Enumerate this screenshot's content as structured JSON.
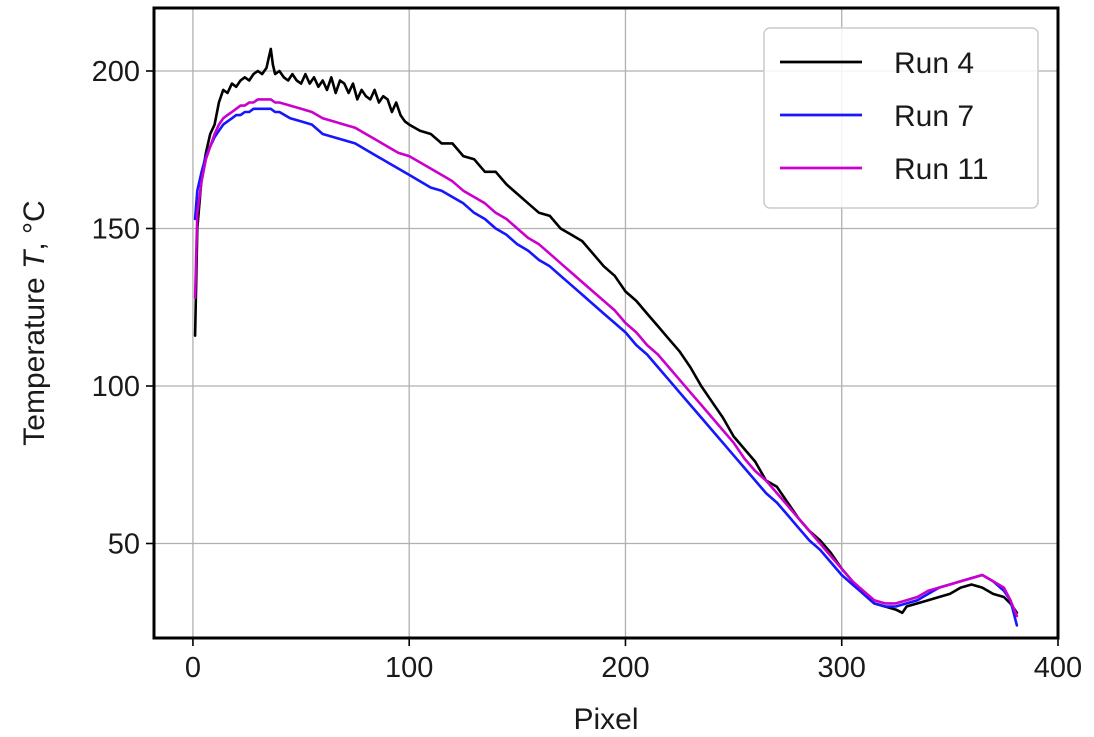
{
  "chart_data": {
    "type": "line",
    "xlabel": "Pixel",
    "ylabel_main": "Temperature ",
    "ylabel_var": "T",
    "ylabel_unit": ", °C",
    "xlim": [
      -18,
      400
    ],
    "ylim": [
      20,
      220
    ],
    "x_ticks": [
      0,
      100,
      200,
      300,
      400
    ],
    "y_ticks": [
      50,
      100,
      150,
      200
    ],
    "grid": true,
    "legend_position": "top-right",
    "series": [
      {
        "name": "Run 4",
        "color": "#000000",
        "x": [
          1,
          2,
          4,
          6,
          8,
          10,
          12,
          14,
          16,
          18,
          20,
          22,
          24,
          26,
          28,
          30,
          32,
          34,
          35,
          36,
          37,
          38,
          40,
          42,
          44,
          46,
          48,
          50,
          52,
          54,
          56,
          58,
          60,
          62,
          64,
          66,
          68,
          70,
          72,
          74,
          76,
          78,
          80,
          82,
          84,
          86,
          88,
          90,
          92,
          94,
          96,
          98,
          100,
          105,
          110,
          115,
          120,
          125,
          130,
          135,
          140,
          145,
          150,
          155,
          160,
          165,
          170,
          175,
          180,
          185,
          190,
          195,
          200,
          205,
          210,
          215,
          220,
          225,
          230,
          235,
          240,
          245,
          250,
          255,
          260,
          265,
          270,
          275,
          280,
          285,
          290,
          295,
          300,
          305,
          310,
          315,
          320,
          325,
          328,
          330,
          335,
          340,
          345,
          350,
          355,
          360,
          365,
          370,
          375,
          378,
          381
        ],
        "y": [
          116,
          150,
          166,
          174,
          180,
          183,
          190,
          194,
          193,
          196,
          195,
          197,
          198,
          197,
          199,
          200,
          199,
          201,
          204,
          207,
          202,
          199,
          200,
          198,
          197,
          199,
          197,
          196,
          199,
          196,
          198,
          195,
          197,
          194,
          198,
          193,
          197,
          196,
          193,
          196,
          191,
          194,
          192,
          191,
          194,
          190,
          192,
          191,
          187,
          190,
          186,
          184,
          183,
          181,
          180,
          177,
          177,
          173,
          172,
          168,
          168,
          164,
          161,
          158,
          155,
          154,
          150,
          148,
          146,
          142,
          138,
          135,
          130,
          127,
          123,
          119,
          115,
          111,
          106,
          100,
          95,
          90,
          84,
          80,
          76,
          70,
          68,
          63,
          58,
          54,
          51,
          47,
          42,
          38,
          34,
          31,
          30,
          29,
          28,
          30,
          31,
          32,
          33,
          34,
          36,
          37,
          36,
          34,
          33,
          31,
          28
        ]
      },
      {
        "name": "Run 7",
        "color": "#1616ff",
        "x": [
          1,
          2,
          4,
          6,
          8,
          10,
          12,
          14,
          16,
          18,
          20,
          22,
          24,
          26,
          28,
          30,
          32,
          34,
          36,
          38,
          40,
          45,
          50,
          55,
          60,
          65,
          70,
          75,
          80,
          85,
          90,
          95,
          100,
          105,
          110,
          115,
          120,
          125,
          130,
          135,
          140,
          145,
          150,
          155,
          160,
          165,
          170,
          175,
          180,
          185,
          190,
          195,
          200,
          205,
          210,
          215,
          220,
          225,
          230,
          235,
          240,
          245,
          250,
          255,
          260,
          265,
          270,
          275,
          280,
          285,
          290,
          295,
          300,
          305,
          310,
          315,
          320,
          325,
          330,
          335,
          340,
          345,
          350,
          355,
          360,
          365,
          370,
          375,
          378,
          381
        ],
        "y": [
          153,
          162,
          168,
          173,
          176,
          179,
          181,
          183,
          184,
          185,
          186,
          186,
          187,
          187,
          188,
          188,
          188,
          188,
          188,
          187,
          187,
          185,
          184,
          183,
          180,
          179,
          178,
          177,
          175,
          173,
          171,
          169,
          167,
          165,
          163,
          162,
          160,
          158,
          155,
          153,
          150,
          148,
          145,
          143,
          140,
          138,
          135,
          132,
          129,
          126,
          123,
          120,
          117,
          113,
          110,
          106,
          102,
          98,
          94,
          90,
          86,
          82,
          78,
          74,
          70,
          66,
          63,
          59,
          55,
          51,
          48,
          44,
          40,
          37,
          34,
          31,
          30,
          30,
          31,
          32,
          34,
          36,
          37,
          38,
          39,
          40,
          38,
          35,
          32,
          24
        ]
      },
      {
        "name": "Run 11",
        "color": "#cc00cc",
        "x": [
          1,
          2,
          4,
          6,
          8,
          10,
          12,
          14,
          16,
          18,
          20,
          22,
          24,
          26,
          28,
          30,
          32,
          34,
          36,
          38,
          40,
          45,
          50,
          55,
          60,
          65,
          70,
          75,
          80,
          85,
          90,
          95,
          100,
          105,
          110,
          115,
          120,
          125,
          130,
          135,
          140,
          145,
          150,
          155,
          160,
          165,
          170,
          175,
          180,
          185,
          190,
          195,
          200,
          205,
          210,
          215,
          220,
          225,
          230,
          235,
          240,
          245,
          250,
          255,
          260,
          265,
          270,
          275,
          280,
          285,
          290,
          295,
          300,
          305,
          310,
          315,
          320,
          325,
          330,
          335,
          340,
          345,
          350,
          355,
          360,
          365,
          370,
          375,
          378,
          381
        ],
        "y": [
          128,
          155,
          165,
          172,
          176,
          180,
          183,
          185,
          186,
          187,
          188,
          189,
          189,
          190,
          190,
          191,
          191,
          191,
          191,
          190,
          190,
          189,
          188,
          187,
          185,
          184,
          183,
          182,
          180,
          178,
          176,
          174,
          173,
          171,
          169,
          167,
          165,
          162,
          160,
          158,
          155,
          153,
          150,
          147,
          145,
          142,
          139,
          136,
          133,
          130,
          127,
          124,
          120,
          117,
          113,
          110,
          106,
          102,
          98,
          94,
          90,
          86,
          82,
          77,
          73,
          70,
          66,
          62,
          58,
          54,
          50,
          46,
          42,
          38,
          35,
          32,
          31,
          31,
          32,
          33,
          35,
          36,
          37,
          38,
          39,
          40,
          38,
          36,
          32,
          27
        ]
      }
    ]
  }
}
